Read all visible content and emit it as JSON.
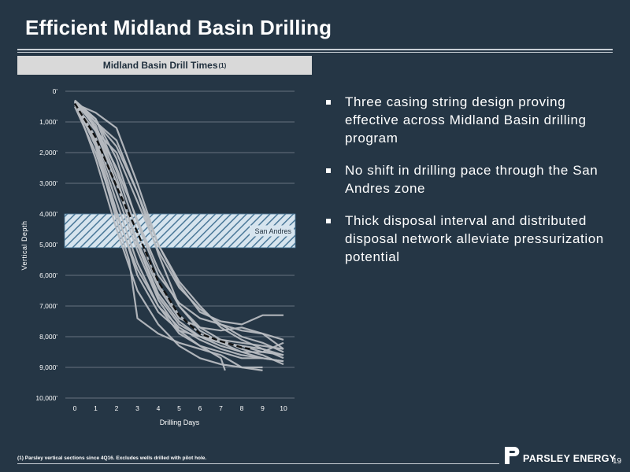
{
  "title": "Efficient Midland Basin Drilling",
  "chart_header": {
    "text": "Midland Basin Drill Times",
    "sup": "(1)"
  },
  "bullets": [
    {
      "text": "Three casing string design proving effective across Midland Basin drilling program"
    },
    {
      "text": "No shift in drilling pace through the San Andres zone"
    },
    {
      "text": "Thick disposal interval and distributed disposal network alleviate pressurization potential"
    }
  ],
  "footnote": "(1) Parsley vertical sections since 4Q16. Excludes wells drilled with pilot hole.",
  "company": "PARSLEY ENERGY",
  "page_number": "19",
  "colors": {
    "background": "#253645",
    "well_lines": "#b7bcc1",
    "average_line": "#111111",
    "band_fill": "#d6e4ee",
    "band_hatch": "#4a7898"
  },
  "chart_data": {
    "type": "line",
    "xlabel": "Drilling Days",
    "ylabel": "Vertical Depth",
    "xlim": [
      0,
      10
    ],
    "ylim": [
      0,
      10000
    ],
    "y_inverted": true,
    "xticks": [
      0,
      1,
      2,
      3,
      4,
      5,
      6,
      7,
      8,
      9,
      10
    ],
    "xtick_labels": [
      "0",
      "1",
      "2",
      "3",
      "4",
      "5",
      "6",
      "7",
      "8",
      "9",
      "10"
    ],
    "yticks": [
      0,
      1000,
      2000,
      3000,
      4000,
      5000,
      6000,
      7000,
      8000,
      9000,
      10000
    ],
    "ytick_labels": [
      "0'",
      "1,000'",
      "2,000'",
      "3,000'",
      "4,000'",
      "5,000'",
      "6,000'",
      "7,000'",
      "8,000'",
      "9,000'",
      "10,000'"
    ],
    "grid": "horizontal",
    "zone": {
      "label": "San Andres",
      "y_top": 4000,
      "y_bottom": 5100
    },
    "average": {
      "points": [
        [
          0,
          400
        ],
        [
          1,
          1500
        ],
        [
          2,
          3100
        ],
        [
          3,
          4600
        ],
        [
          4,
          6200
        ],
        [
          5,
          7300
        ],
        [
          6,
          7900
        ],
        [
          7,
          8150
        ],
        [
          8,
          8350
        ],
        [
          8.4,
          8400
        ]
      ]
    },
    "wells": [
      {
        "points": [
          [
            0,
            300
          ],
          [
            0.5,
            600
          ],
          [
            1,
            1300
          ],
          [
            2,
            3000
          ],
          [
            3,
            5000
          ],
          [
            4,
            6700
          ],
          [
            5,
            7600
          ],
          [
            6,
            8000
          ],
          [
            7,
            8200
          ],
          [
            8,
            8300
          ],
          [
            9,
            8400
          ],
          [
            10,
            8600
          ]
        ]
      },
      {
        "points": [
          [
            0,
            350
          ],
          [
            1,
            1800
          ],
          [
            2,
            4200
          ],
          [
            2.6,
            5500
          ],
          [
            3,
            7400
          ],
          [
            4,
            7900
          ],
          [
            5,
            8200
          ],
          [
            6,
            8400
          ],
          [
            7,
            8600
          ],
          [
            8,
            9000
          ],
          [
            9,
            9100
          ]
        ]
      },
      {
        "points": [
          [
            0,
            400
          ],
          [
            1,
            700
          ],
          [
            2,
            1200
          ],
          [
            3,
            3000
          ],
          [
            4,
            5000
          ],
          [
            5,
            6300
          ],
          [
            6,
            7200
          ],
          [
            7,
            7500
          ],
          [
            8,
            7600
          ],
          [
            9,
            7300
          ],
          [
            10,
            7300
          ]
        ]
      },
      {
        "points": [
          [
            0,
            300
          ],
          [
            1,
            1200
          ],
          [
            2,
            2500
          ],
          [
            3,
            4200
          ],
          [
            4,
            5800
          ],
          [
            5,
            7000
          ],
          [
            6,
            7700
          ],
          [
            7,
            8100
          ],
          [
            8,
            8400
          ],
          [
            9,
            8600
          ],
          [
            10,
            8900
          ]
        ]
      },
      {
        "points": [
          [
            0,
            500
          ],
          [
            1,
            2000
          ],
          [
            2,
            4000
          ],
          [
            3,
            5800
          ],
          [
            4,
            7000
          ],
          [
            5,
            7900
          ],
          [
            6,
            8300
          ],
          [
            7,
            8500
          ],
          [
            8,
            8700
          ],
          [
            9,
            8700
          ],
          [
            10,
            8800
          ]
        ]
      },
      {
        "points": [
          [
            0,
            300
          ],
          [
            1,
            1000
          ],
          [
            2,
            1600
          ],
          [
            3,
            3300
          ],
          [
            4,
            5300
          ],
          [
            5,
            7000
          ],
          [
            6,
            7800
          ],
          [
            7,
            8200
          ],
          [
            8,
            8500
          ],
          [
            9,
            8500
          ],
          [
            10,
            8200
          ]
        ]
      },
      {
        "points": [
          [
            0,
            400
          ],
          [
            1,
            1500
          ],
          [
            2,
            3300
          ],
          [
            3,
            5200
          ],
          [
            4,
            6800
          ],
          [
            5,
            7800
          ],
          [
            6,
            8300
          ],
          [
            7,
            8700
          ],
          [
            7.2,
            9100
          ]
        ]
      },
      {
        "points": [
          [
            0,
            350
          ],
          [
            1,
            900
          ],
          [
            2,
            2200
          ],
          [
            3,
            4300
          ],
          [
            4,
            6000
          ],
          [
            5,
            6900
          ],
          [
            6,
            7400
          ],
          [
            7,
            7600
          ],
          [
            8,
            7800
          ],
          [
            9,
            7900
          ],
          [
            10,
            8400
          ]
        ]
      },
      {
        "points": [
          [
            0,
            300
          ],
          [
            1,
            2200
          ],
          [
            2,
            4500
          ],
          [
            3,
            6500
          ],
          [
            4,
            7600
          ],
          [
            5,
            8300
          ],
          [
            6,
            8700
          ],
          [
            7,
            8900
          ],
          [
            8,
            9000
          ],
          [
            9,
            9000
          ]
        ]
      },
      {
        "points": [
          [
            0,
            400
          ],
          [
            1,
            1100
          ],
          [
            2,
            2800
          ],
          [
            3,
            5000
          ],
          [
            4,
            6600
          ],
          [
            5,
            7500
          ],
          [
            6,
            8000
          ],
          [
            7,
            8300
          ],
          [
            8,
            8500
          ],
          [
            9,
            8700
          ],
          [
            10,
            8800
          ]
        ]
      },
      {
        "points": [
          [
            0,
            300
          ],
          [
            1,
            1600
          ],
          [
            2,
            3600
          ],
          [
            3,
            5600
          ],
          [
            4,
            7000
          ],
          [
            5,
            7700
          ],
          [
            6,
            8100
          ],
          [
            7,
            8400
          ],
          [
            8,
            8600
          ],
          [
            9,
            8700
          ]
        ]
      },
      {
        "points": [
          [
            0,
            450
          ],
          [
            1,
            1300
          ],
          [
            2,
            2000
          ],
          [
            3,
            3600
          ],
          [
            4,
            5200
          ],
          [
            5,
            6400
          ],
          [
            6,
            7100
          ],
          [
            7,
            7600
          ],
          [
            8,
            8000
          ],
          [
            9,
            8200
          ],
          [
            10,
            8500
          ]
        ]
      },
      {
        "points": [
          [
            0,
            300
          ],
          [
            1,
            900
          ],
          [
            2,
            2600
          ],
          [
            3,
            4600
          ],
          [
            4,
            6300
          ],
          [
            5,
            7300
          ],
          [
            6,
            7900
          ],
          [
            7,
            8200
          ],
          [
            8,
            8300
          ],
          [
            9,
            8500
          ],
          [
            10,
            8600
          ]
        ]
      },
      {
        "points": [
          [
            0,
            350
          ],
          [
            1,
            1700
          ],
          [
            2,
            3900
          ],
          [
            3,
            6000
          ],
          [
            4,
            7200
          ],
          [
            5,
            7800
          ],
          [
            6,
            8000
          ],
          [
            7,
            8100
          ],
          [
            8,
            8200
          ],
          [
            9,
            8300
          ],
          [
            10,
            8400
          ]
        ]
      },
      {
        "points": [
          [
            0,
            300
          ],
          [
            1,
            1200
          ],
          [
            2,
            3000
          ],
          [
            3,
            4900
          ],
          [
            4,
            6400
          ],
          [
            5,
            7400
          ],
          [
            6,
            7700
          ],
          [
            7,
            7800
          ],
          [
            8,
            7700
          ],
          [
            9,
            7900
          ],
          [
            10,
            8100
          ]
        ]
      },
      {
        "points": [
          [
            0,
            400
          ],
          [
            1,
            1000
          ],
          [
            2,
            1800
          ],
          [
            3,
            3300
          ],
          [
            4,
            5000
          ],
          [
            5,
            6200
          ],
          [
            6,
            7000
          ],
          [
            7,
            7700
          ],
          [
            8,
            8100
          ],
          [
            9,
            8400
          ],
          [
            10,
            8700
          ]
        ]
      }
    ]
  }
}
